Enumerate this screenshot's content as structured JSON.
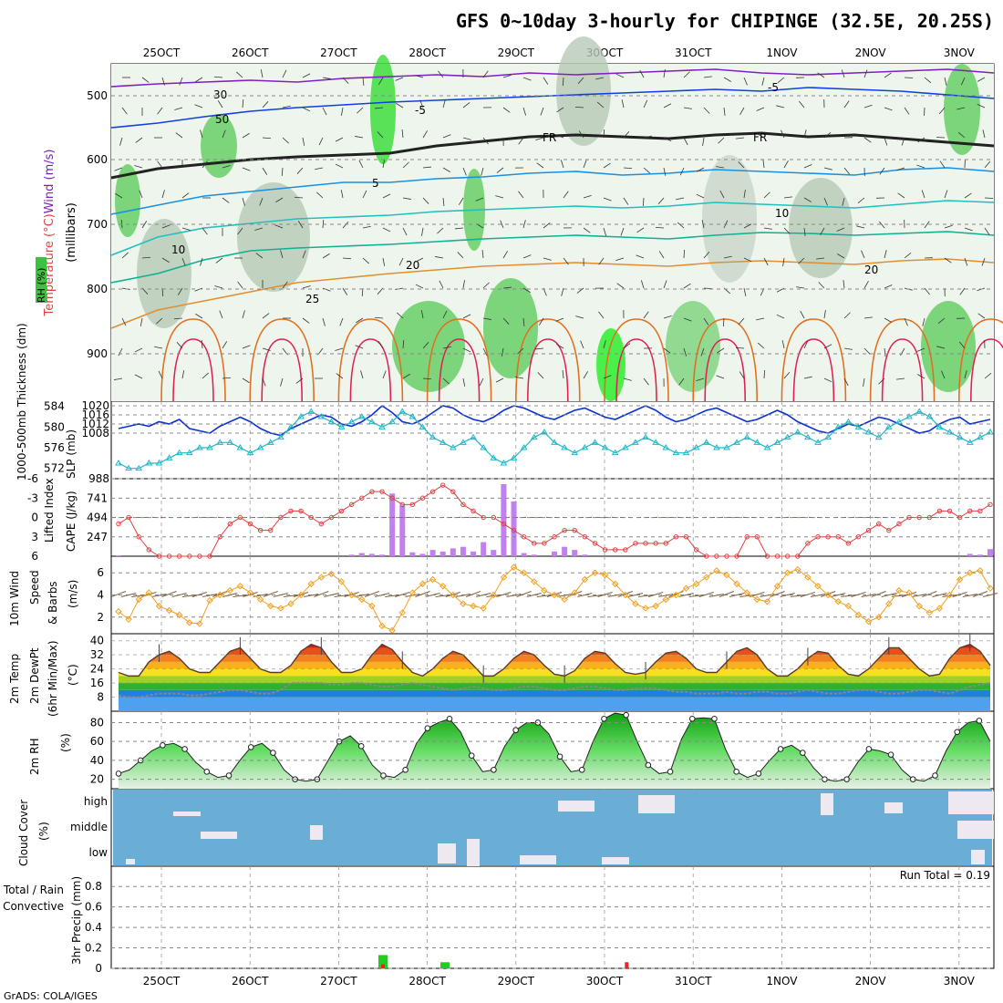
{
  "title": "GFS 0~10day 3-hourly for CHIPINGE (32.5E, 20.25S)",
  "footer": "GrADS: COLA/IGES",
  "chart_data": {
    "type": "meteogram",
    "dates": [
      "25OCT",
      "26OCT",
      "27OCT",
      "28OCT",
      "29OCT",
      "30OCT",
      "31OCT",
      "1NOV",
      "2NOV",
      "3NOV"
    ],
    "panels": [
      {
        "name": "upper-air",
        "labels": {
          "rh": "RH (%)",
          "temp": "Temperature (°C)",
          "wind": "Wind (m/s)",
          "units": "(millibars)"
        },
        "ylevels": [
          "500",
          "600",
          "700",
          "800",
          "900"
        ],
        "contour_labels": [
          "-5",
          "FR",
          "5",
          "10",
          "20",
          "25",
          "30",
          "50"
        ]
      },
      {
        "name": "slp-thickness",
        "labels": {
          "thk": "1000-500mb Thickness (dm)",
          "slp": "SLP (mb)"
        },
        "left_ticks": [
          "584",
          "580",
          "576",
          "572"
        ],
        "right_ticks": [
          "1020",
          "1016",
          "1012",
          "1008",
          "988"
        ],
        "slp": [
          1010,
          1011,
          1012,
          1011,
          1013,
          1012,
          1014,
          1010,
          1009,
          1008,
          1011,
          1013,
          1015,
          1013,
          1010,
          1008,
          1007,
          1010,
          1012,
          1014,
          1016,
          1015,
          1012,
          1011,
          1013,
          1016,
          1020,
          1017,
          1013,
          1012,
          1014,
          1017,
          1020,
          1019,
          1016,
          1014,
          1013,
          1015,
          1018,
          1020,
          1019,
          1017,
          1015,
          1014,
          1016,
          1018,
          1019,
          1017,
          1015,
          1014,
          1016,
          1018,
          1020,
          1018,
          1015,
          1013,
          1014,
          1016,
          1018,
          1019,
          1017,
          1015,
          1013,
          1014,
          1016,
          1018,
          1016,
          1013,
          1011,
          1009,
          1008,
          1010,
          1012,
          1011,
          1013,
          1015,
          1014,
          1012,
          1010,
          1008,
          1009,
          1012,
          1014,
          1015,
          1012,
          1013,
          1014
        ],
        "thk": [
          573,
          572,
          572,
          573,
          573,
          574,
          575,
          575,
          576,
          576,
          577,
          577,
          576,
          575,
          576,
          577,
          578,
          580,
          582,
          583,
          582,
          581,
          580,
          581,
          582,
          581,
          580,
          581,
          583,
          582,
          580,
          578,
          577,
          576,
          577,
          578,
          576,
          574,
          573,
          574,
          576,
          578,
          579,
          577,
          576,
          575,
          576,
          577,
          576,
          575,
          576,
          577,
          578,
          577,
          576,
          575,
          575,
          576,
          577,
          576,
          576,
          577,
          578,
          577,
          576,
          577,
          578,
          579,
          578,
          577,
          578,
          580,
          581,
          580,
          579,
          578,
          580,
          581,
          582,
          583,
          582,
          580,
          579,
          578,
          577,
          578,
          579
        ]
      },
      {
        "name": "li-cape",
        "labels": {
          "li": "Lifted Index",
          "cape": "CAPE (J/kg)"
        },
        "left_ticks": [
          "-6",
          "-3",
          "0",
          "3",
          "6"
        ],
        "right_ticks": [
          "741",
          "494",
          "247"
        ],
        "lifted_index": [
          1,
          0,
          3,
          5,
          6,
          6,
          6,
          6,
          6,
          6,
          3,
          1,
          0,
          1,
          2,
          2,
          0,
          -1,
          -1,
          0,
          1,
          0,
          -1,
          -2,
          -3,
          -4,
          -4,
          -3,
          -2,
          -2,
          -3,
          -4,
          -5,
          -4,
          -2,
          -1,
          0,
          0,
          1,
          2,
          3,
          4,
          4,
          3,
          2,
          2,
          3,
          4,
          5,
          5,
          5,
          4,
          4,
          4,
          4,
          3,
          3,
          5,
          6,
          6,
          6,
          6,
          3,
          3,
          6,
          6,
          6,
          6,
          4,
          3,
          3,
          3,
          4,
          3,
          2,
          1,
          2,
          1,
          0,
          0,
          0,
          -1,
          -1,
          0,
          -1,
          -1,
          -2
        ],
        "cape": [
          10,
          0,
          0,
          0,
          0,
          0,
          0,
          0,
          0,
          0,
          0,
          0,
          0,
          0,
          0,
          0,
          0,
          0,
          0,
          0,
          0,
          0,
          0,
          20,
          40,
          30,
          20,
          800,
          650,
          50,
          30,
          80,
          60,
          100,
          120,
          60,
          180,
          80,
          920,
          700,
          40,
          20,
          0,
          60,
          120,
          80,
          20,
          0,
          0,
          0,
          0,
          0,
          0,
          0,
          0,
          0,
          0,
          0,
          0,
          0,
          0,
          0,
          0,
          0,
          0,
          0,
          0,
          0,
          0,
          0,
          0,
          0,
          0,
          0,
          0,
          0,
          0,
          0,
          0,
          0,
          0,
          0,
          0,
          0,
          30,
          20,
          90
        ]
      },
      {
        "name": "wind10m",
        "labels": {
          "line1": "10m Wind",
          "line2": "Speed",
          "line3": "& Barbs",
          "units": "(m/s)"
        },
        "left_ticks": [
          "6",
          "4",
          "2"
        ],
        "speed": [
          2.5,
          1.8,
          3.6,
          4.2,
          3.0,
          2.6,
          2.2,
          1.5,
          1.4,
          3.5,
          4.0,
          4.4,
          4.8,
          4.2,
          3.6,
          3.0,
          2.8,
          3.2,
          4.0,
          5.0,
          5.6,
          5.9,
          5.2,
          4.0,
          3.6,
          3.0,
          1.2,
          0.8,
          2.4,
          4.2,
          5.0,
          5.4,
          4.8,
          4.0,
          3.2,
          3.0,
          2.8,
          4.0,
          5.6,
          6.5,
          6.0,
          5.2,
          4.4,
          4.0,
          3.6,
          4.2,
          5.4,
          6.0,
          5.8,
          5.0,
          4.0,
          3.2,
          2.8,
          3.0,
          3.6,
          4.0,
          4.6,
          5.0,
          5.6,
          6.2,
          5.8,
          5.0,
          4.2,
          3.6,
          3.4,
          4.8,
          6.0,
          6.3,
          5.6,
          4.8,
          4.0,
          3.4,
          3.0,
          2.2,
          1.6,
          2.0,
          3.2,
          4.4,
          4.2,
          3.0,
          2.4,
          2.8,
          4.0,
          5.4,
          6.0,
          6.2,
          4.6
        ]
      },
      {
        "name": "temp2m",
        "labels": {
          "line1": "2m Temp",
          "line2": "2m DewPt",
          "line3": "(6hr Min/Max)",
          "units": "(°C)"
        },
        "left_ticks": [
          "40",
          "32",
          "24",
          "16",
          "8"
        ],
        "temp": [
          22,
          20,
          20,
          28,
          32,
          34,
          30,
          24,
          22,
          22,
          28,
          34,
          36,
          30,
          24,
          22,
          22,
          26,
          34,
          38,
          36,
          28,
          22,
          22,
          24,
          32,
          38,
          35,
          28,
          22,
          20,
          24,
          30,
          34,
          32,
          26,
          20,
          20,
          24,
          30,
          34,
          32,
          26,
          21,
          20,
          23,
          30,
          34,
          33,
          27,
          22,
          21,
          22,
          28,
          33,
          34,
          30,
          24,
          22,
          22,
          28,
          34,
          36,
          32,
          24,
          20,
          20,
          24,
          30,
          34,
          33,
          26,
          21,
          20,
          24,
          30,
          36,
          36,
          30,
          24,
          20,
          21,
          30,
          36,
          38,
          34,
          26
        ],
        "dewpt": [
          9,
          8,
          8,
          9,
          10,
          10,
          10,
          9,
          9,
          10,
          11,
          12,
          12,
          11,
          10,
          10,
          12,
          16,
          16,
          16,
          16,
          15,
          15,
          16,
          16,
          15,
          14,
          14,
          15,
          16,
          15,
          14,
          13,
          12,
          13,
          14,
          13,
          12,
          12,
          13,
          14,
          14,
          13,
          12,
          12,
          13,
          14,
          14,
          13,
          12,
          12,
          13,
          13,
          13,
          12,
          11,
          11,
          10,
          10,
          10,
          11,
          10,
          10,
          11,
          11,
          10,
          10,
          11,
          12,
          11,
          10,
          10,
          11,
          12,
          12,
          11,
          10,
          10,
          11,
          12,
          12,
          11,
          10,
          12,
          14,
          15,
          16
        ]
      },
      {
        "name": "rh2m",
        "labels": {
          "line1": "2m RH",
          "units": "(%)"
        },
        "left_ticks": [
          "80",
          "60",
          "40",
          "20"
        ],
        "rh": [
          26,
          30,
          40,
          50,
          56,
          58,
          52,
          38,
          28,
          22,
          24,
          40,
          54,
          58,
          48,
          30,
          20,
          18,
          20,
          40,
          60,
          66,
          55,
          35,
          24,
          22,
          30,
          58,
          74,
          80,
          84,
          70,
          45,
          28,
          30,
          55,
          72,
          80,
          80,
          68,
          44,
          28,
          30,
          60,
          84,
          90,
          88,
          60,
          35,
          26,
          28,
          62,
          84,
          85,
          84,
          52,
          28,
          22,
          26,
          40,
          52,
          56,
          48,
          32,
          20,
          18,
          20,
          38,
          52,
          50,
          46,
          30,
          20,
          18,
          24,
          50,
          70,
          80,
          82,
          60
        ]
      },
      {
        "name": "cloud-cover",
        "labels": {
          "line1": "Cloud Cover",
          "units": "(%)"
        },
        "levels": [
          "high",
          "middle",
          "low"
        ]
      },
      {
        "name": "precip",
        "labels": {
          "total": "Total / Rain",
          "conv": "Convective",
          "units": "3hr Precip (mm)"
        },
        "left_ticks": [
          "0.8",
          "0.6",
          "0.4",
          "0.2",
          "0"
        ],
        "run_total": "Run Total = 0.19",
        "bars": [
          {
            "day_offset": 2.5,
            "total": 0.13,
            "conv": 0.04
          },
          {
            "day_offset": 3.2,
            "total": 0.06,
            "conv": 0
          },
          {
            "day_offset": 5.25,
            "total": 0,
            "conv": 0.06
          }
        ]
      }
    ]
  },
  "colors": {
    "slp": "#0a32d2",
    "thickness": "#20b8c8",
    "lifted": "#e04040",
    "cape": "#c080f0",
    "wind": "#f0a020",
    "barb": "#806040",
    "rh": "#10a010",
    "cloud_bg": "#6aaed6",
    "precip_total": "#22cc22",
    "precip_conv": "#ee2222"
  }
}
